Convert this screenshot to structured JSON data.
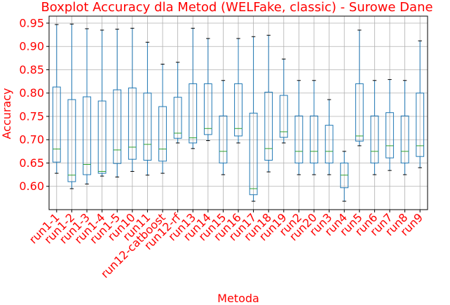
{
  "chart_data": {
    "type": "box",
    "title": "Boxplot Accuracy dla Metod (WELFake, classic) - Surowe Dane",
    "xlabel": "Metoda",
    "ylabel": "Accuracy",
    "ylim": [
      0.55,
      0.965
    ],
    "yticks": [
      "0.60",
      "0.65",
      "0.70",
      "0.75",
      "0.80",
      "0.85",
      "0.90",
      "0.95"
    ],
    "grid": true,
    "categories": [
      "run1-1",
      "run1-2",
      "run1-3",
      "run1-4",
      "run1-5",
      "run10",
      "run11",
      "run12-catboost",
      "run12-rf",
      "run13",
      "run14",
      "run15",
      "run16",
      "run17",
      "run18",
      "run19",
      "run2",
      "run20",
      "run3",
      "run4",
      "run5",
      "run6",
      "run7",
      "run8",
      "run9"
    ],
    "boxes": [
      {
        "whislo": 0.628,
        "q1": 0.652,
        "med": 0.68,
        "q3": 0.813,
        "whishi": 0.947
      },
      {
        "whislo": 0.595,
        "q1": 0.61,
        "med": 0.624,
        "q3": 0.786,
        "whishi": 0.948
      },
      {
        "whislo": 0.605,
        "q1": 0.625,
        "med": 0.647,
        "q3": 0.792,
        "whishi": 0.938
      },
      {
        "whislo": 0.622,
        "q1": 0.628,
        "med": 0.632,
        "q3": 0.783,
        "whishi": 0.935
      },
      {
        "whislo": 0.62,
        "q1": 0.649,
        "med": 0.678,
        "q3": 0.807,
        "whishi": 0.937
      },
      {
        "whislo": 0.632,
        "q1": 0.658,
        "med": 0.684,
        "q3": 0.811,
        "whishi": 0.939
      },
      {
        "whislo": 0.624,
        "q1": 0.656,
        "med": 0.69,
        "q3": 0.8,
        "whishi": 0.909
      },
      {
        "whislo": 0.628,
        "q1": 0.654,
        "med": 0.68,
        "q3": 0.771,
        "whishi": 0.862
      },
      {
        "whislo": 0.693,
        "q1": 0.703,
        "med": 0.714,
        "q3": 0.791,
        "whishi": 0.866
      },
      {
        "whislo": 0.681,
        "q1": 0.693,
        "med": 0.704,
        "q3": 0.82,
        "whishi": 0.939
      },
      {
        "whislo": 0.698,
        "q1": 0.711,
        "med": 0.724,
        "q3": 0.82,
        "whishi": 0.917
      },
      {
        "whislo": 0.625,
        "q1": 0.65,
        "med": 0.675,
        "q3": 0.751,
        "whishi": 0.827
      },
      {
        "whislo": 0.693,
        "q1": 0.708,
        "med": 0.724,
        "q3": 0.82,
        "whishi": 0.917
      },
      {
        "whislo": 0.568,
        "q1": 0.582,
        "med": 0.595,
        "q3": 0.757,
        "whishi": 0.921
      },
      {
        "whislo": 0.631,
        "q1": 0.656,
        "med": 0.681,
        "q3": 0.802,
        "whishi": 0.924
      },
      {
        "whislo": 0.693,
        "q1": 0.705,
        "med": 0.717,
        "q3": 0.795,
        "whishi": 0.873
      },
      {
        "whislo": 0.625,
        "q1": 0.65,
        "med": 0.675,
        "q3": 0.751,
        "whishi": 0.827
      },
      {
        "whislo": 0.625,
        "q1": 0.65,
        "med": 0.675,
        "q3": 0.751,
        "whishi": 0.827
      },
      {
        "whislo": 0.625,
        "q1": 0.65,
        "med": 0.675,
        "q3": 0.731,
        "whishi": 0.786
      },
      {
        "whislo": 0.568,
        "q1": 0.597,
        "med": 0.624,
        "q3": 0.65,
        "whishi": 0.675
      },
      {
        "whislo": 0.687,
        "q1": 0.697,
        "med": 0.708,
        "q3": 0.82,
        "whishi": 0.935
      },
      {
        "whislo": 0.625,
        "q1": 0.65,
        "med": 0.675,
        "q3": 0.751,
        "whishi": 0.827
      },
      {
        "whislo": 0.634,
        "q1": 0.661,
        "med": 0.687,
        "q3": 0.758,
        "whishi": 0.829
      },
      {
        "whislo": 0.625,
        "q1": 0.65,
        "med": 0.675,
        "q3": 0.751,
        "whishi": 0.827
      },
      {
        "whislo": 0.64,
        "q1": 0.664,
        "med": 0.687,
        "q3": 0.8,
        "whishi": 0.912
      }
    ],
    "colors": {
      "text": "#ff0000",
      "box": "#1f77b4",
      "median": "#2ca02c",
      "cap": "#000000",
      "grid": "#b0b0b0"
    }
  }
}
